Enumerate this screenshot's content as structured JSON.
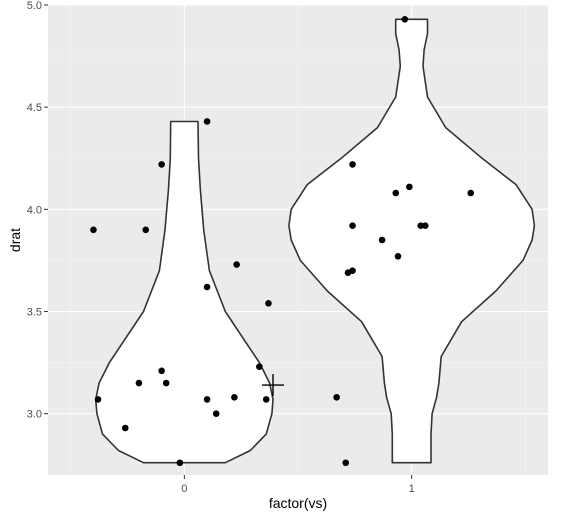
{
  "colors": {
    "panel": "#ebebeb",
    "grid_major": "#ffffff",
    "grid_minor": "#f5f5f5",
    "violin_fill": "#ffffff",
    "violin_stroke": "#333333",
    "point": "#000000",
    "tick_text": "#4d4d4d"
  },
  "chart_data": {
    "type": "violin",
    "xlabel": "factor(vs)",
    "ylabel": "drat",
    "categories": [
      "0",
      "1"
    ],
    "ylim": [
      2.7,
      5.0
    ],
    "yticks": [
      3.0,
      3.5,
      4.0,
      4.5,
      5.0
    ],
    "ytick_labels": [
      "3.0",
      "3.5",
      "4.0",
      "4.5",
      "5.0"
    ],
    "grid": true,
    "violins": [
      {
        "category": "0",
        "profile": [
          [
            2.76,
            0.18
          ],
          [
            2.82,
            0.29
          ],
          [
            2.9,
            0.36
          ],
          [
            3.0,
            0.385
          ],
          [
            3.07,
            0.39
          ],
          [
            3.15,
            0.375
          ],
          [
            3.25,
            0.33
          ],
          [
            3.35,
            0.27
          ],
          [
            3.5,
            0.18
          ],
          [
            3.7,
            0.11
          ],
          [
            3.9,
            0.085
          ],
          [
            4.1,
            0.07
          ],
          [
            4.25,
            0.062
          ],
          [
            4.43,
            0.06
          ]
        ]
      },
      {
        "category": "1",
        "profile": [
          [
            2.76,
            0.085
          ],
          [
            2.9,
            0.085
          ],
          [
            3.0,
            0.09
          ],
          [
            3.08,
            0.11
          ],
          [
            3.15,
            0.12
          ],
          [
            3.28,
            0.13
          ],
          [
            3.45,
            0.22
          ],
          [
            3.6,
            0.37
          ],
          [
            3.75,
            0.49
          ],
          [
            3.85,
            0.53
          ],
          [
            3.92,
            0.54
          ],
          [
            4.0,
            0.53
          ],
          [
            4.12,
            0.46
          ],
          [
            4.25,
            0.31
          ],
          [
            4.4,
            0.15
          ],
          [
            4.55,
            0.07
          ],
          [
            4.7,
            0.05
          ],
          [
            4.78,
            0.055
          ],
          [
            4.86,
            0.07
          ],
          [
            4.93,
            0.07
          ]
        ]
      }
    ],
    "points": [
      {
        "x": 0.6,
        "y": 3.9
      },
      {
        "x": 0.83,
        "y": 3.9
      },
      {
        "x": 0.9,
        "y": 4.22
      },
      {
        "x": 1.1,
        "y": 4.43
      },
      {
        "x": 1.1,
        "y": 3.62
      },
      {
        "x": 1.23,
        "y": 3.73
      },
      {
        "x": 1.37,
        "y": 3.54
      },
      {
        "x": 0.62,
        "y": 3.07
      },
      {
        "x": 0.8,
        "y": 3.15
      },
      {
        "x": 0.9,
        "y": 3.21
      },
      {
        "x": 0.92,
        "y": 3.15
      },
      {
        "x": 1.1,
        "y": 3.07
      },
      {
        "x": 1.22,
        "y": 3.08
      },
      {
        "x": 1.33,
        "y": 3.23
      },
      {
        "x": 1.36,
        "y": 3.07
      },
      {
        "x": 0.74,
        "y": 2.93
      },
      {
        "x": 1.14,
        "y": 3.0
      },
      {
        "x": 0.98,
        "y": 2.76
      },
      {
        "x": 1.67,
        "y": 3.08
      },
      {
        "x": 1.71,
        "y": 2.76
      },
      {
        "x": 1.97,
        "y": 4.93
      },
      {
        "x": 1.74,
        "y": 4.22
      },
      {
        "x": 1.93,
        "y": 4.08
      },
      {
        "x": 1.99,
        "y": 4.11
      },
      {
        "x": 2.26,
        "y": 4.08
      },
      {
        "x": 1.74,
        "y": 3.92
      },
      {
        "x": 2.04,
        "y": 3.92
      },
      {
        "x": 2.06,
        "y": 3.92
      },
      {
        "x": 1.87,
        "y": 3.85
      },
      {
        "x": 1.94,
        "y": 3.77
      },
      {
        "x": 1.72,
        "y": 3.69
      },
      {
        "x": 1.74,
        "y": 3.7
      }
    ],
    "cursor": {
      "x": 1.39,
      "y": 3.14
    }
  }
}
